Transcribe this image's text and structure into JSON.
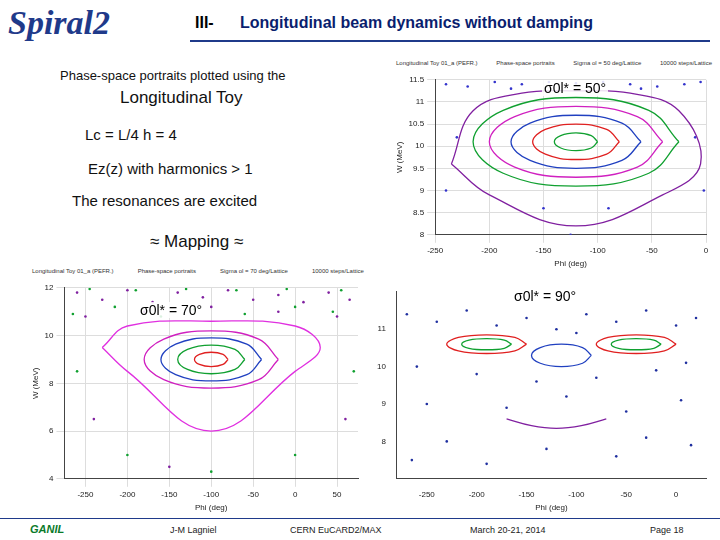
{
  "slide": {
    "logo": "Spiral2",
    "section": "III-",
    "title": "Longitudinal beam dynamics without damping",
    "lines": [
      "Phase-space portraits plotted using the",
      "Longitudinal Toy",
      "Lc = L/4     h = 4",
      "Ez(z) with harmonics > 1",
      "The resonances are excited",
      "≈  Mapping  ≈"
    ],
    "footer": {
      "logo": "GANIL",
      "author": "J-M Lagniel",
      "event": "CERN  EuCARD2/MAX",
      "date": "March 20-21, 2014",
      "page": "Page 18"
    }
  },
  "chart_data": [
    {
      "type": "scatter",
      "header": [
        "Longitudinal Toy 01_a (PEFR.)",
        "Phase-space portraits",
        "Sigma ol = 50 deg/Lattice",
        "10000 steps/Lattice"
      ],
      "annotation": "σ0l* = 50°",
      "x_label": "Phi (deg)",
      "y_label": "W (MeV)",
      "xlim": [
        -250,
        0
      ],
      "xticks": [
        -250,
        -200,
        -150,
        -100,
        -50,
        0
      ],
      "ylim": [
        8,
        11.5
      ],
      "yticks": [
        8,
        8.5,
        9,
        9.5,
        10,
        10.5,
        11,
        11.5
      ],
      "grid": true,
      "series": [
        {
          "color": "#10a030",
          "line_style": "solid",
          "x": [
            -100,
            -105.9,
            -120,
            -134.1,
            -140,
            -134.1,
            -120,
            -105.9,
            -100
          ],
          "values": [
            10.1,
            10.24,
            10.3,
            10.24,
            10.1,
            9.96,
            9.9,
            9.96,
            10.1
          ]
        },
        {
          "color": "#e02020",
          "line_style": "solid",
          "x": [
            -80,
            -91.7,
            -120,
            -148.3,
            -160,
            -148.3,
            -120,
            -91.7,
            -80
          ],
          "values": [
            10.1,
            10.38,
            10.5,
            10.38,
            10.1,
            9.82,
            9.7,
            9.82,
            10.1
          ]
        },
        {
          "color": "#2040c0",
          "line_style": "solid",
          "x": [
            -60,
            -77.6,
            -120,
            -162.4,
            -180,
            -162.4,
            -120,
            -77.6,
            -60
          ],
          "values": [
            10.1,
            10.52,
            10.7,
            10.52,
            10.1,
            9.68,
            9.5,
            9.68,
            10.1
          ]
        },
        {
          "color": "#d020c0",
          "line_style": "solid",
          "x": [
            -40,
            -63.4,
            -120,
            -176.6,
            -200,
            -176.6,
            -120,
            -63.4,
            -40
          ],
          "values": [
            10.1,
            10.67,
            10.9,
            10.67,
            10.1,
            9.53,
            9.3,
            9.53,
            10.1
          ]
        },
        {
          "color": "#10a030",
          "line_style": "solid",
          "x": [
            -25,
            -52.8,
            -120,
            -187.2,
            -215,
            -187.2,
            -120,
            -52.8,
            -25
          ],
          "values": [
            10.1,
            10.81,
            11.1,
            10.81,
            10.1,
            9.39,
            9.1,
            9.39,
            10.1
          ]
        },
        {
          "color": "#8020a0",
          "line_style": "solid",
          "x": [
            -235,
            -215,
            -170,
            -120,
            -70,
            -25,
            -5,
            -40,
            -120,
            -200,
            -235
          ],
          "values": [
            9.6,
            10.8,
            11.2,
            11.25,
            11.2,
            10.8,
            9.6,
            8.9,
            8.2,
            8.9,
            9.6
          ]
        },
        {
          "color": "#3333cc",
          "marker": "dot",
          "x": [
            -240,
            -220,
            -195,
            -170,
            -145,
            -120,
            -95,
            -70,
            -45,
            -20,
            -5,
            -230,
            -10,
            -240,
            -2,
            -180,
            -60,
            -150,
            -90,
            -125
          ],
          "values": [
            11.4,
            11.35,
            11.45,
            11.4,
            11.45,
            11.42,
            11.45,
            11.4,
            11.35,
            11.4,
            11.45,
            10.2,
            10.2,
            9.0,
            9.0,
            11.3,
            11.3,
            8.6,
            8.6,
            8.0
          ]
        }
      ]
    },
    {
      "type": "scatter",
      "header": [
        "Longitudinal Toy 01_a (PEFR.)",
        "Phase-space portraits",
        "Sigma ol = 70 deg/Lattice",
        "10000 steps/Lattice"
      ],
      "annotation": "σ0l* = 70°",
      "x_label": "Phi (deg)",
      "y_label": "W (MeV)",
      "xlim": [
        -275,
        75
      ],
      "xticks": [
        -250,
        -200,
        -150,
        -100,
        -50,
        0,
        50
      ],
      "ylim": [
        4,
        12
      ],
      "yticks": [
        4,
        6,
        8,
        10,
        12
      ],
      "grid": true,
      "series": [
        {
          "color": "#e02020",
          "line_style": "solid",
          "x": [
            -80,
            -85.9,
            -100,
            -114.1,
            -120,
            -114.1,
            -100,
            -85.9,
            -80
          ],
          "values": [
            9.0,
            9.21,
            9.3,
            9.21,
            9.0,
            8.79,
            8.7,
            8.79,
            9.0
          ]
        },
        {
          "color": "#10a030",
          "line_style": "solid",
          "x": [
            -60,
            -71.7,
            -100,
            -128.3,
            -140,
            -128.3,
            -100,
            -71.7,
            -60
          ],
          "values": [
            9.0,
            9.42,
            9.6,
            9.42,
            9.0,
            8.58,
            8.4,
            8.58,
            9.0
          ]
        },
        {
          "color": "#2040c0",
          "line_style": "solid",
          "x": [
            -40,
            -57.6,
            -100,
            -142.4,
            -160,
            -142.4,
            -100,
            -57.6,
            -40
          ],
          "values": [
            9.0,
            9.64,
            9.9,
            9.64,
            9.0,
            8.36,
            8.1,
            8.36,
            9.0
          ]
        },
        {
          "color": "#d020c0",
          "line_style": "solid",
          "x": [
            -20,
            -43.4,
            -100,
            -156.6,
            -180,
            -156.6,
            -100,
            -43.4,
            -20
          ],
          "values": [
            9.0,
            9.85,
            10.2,
            9.85,
            9.0,
            8.15,
            7.8,
            8.15,
            9.0
          ]
        },
        {
          "color": "#e030e0",
          "line_style": "solid",
          "x": [
            -230,
            -200,
            -100,
            0,
            30,
            0,
            -100,
            -200,
            -230
          ],
          "values": [
            9.5,
            10.4,
            10.6,
            10.4,
            9.5,
            8.5,
            6.0,
            8.5,
            9.5
          ]
        },
        {
          "color": "#8020a0",
          "marker": "dot",
          "x": [
            -260,
            -230,
            -200,
            -170,
            -140,
            -110,
            -80,
            -50,
            -20,
            10,
            40,
            65,
            -250,
            -180,
            -100,
            -20,
            50,
            -240,
            60,
            -150
          ],
          "values": [
            11.8,
            11.5,
            11.9,
            11.4,
            11.8,
            11.6,
            11.9,
            11.5,
            11.7,
            11.4,
            11.8,
            11.5,
            10.8,
            11.0,
            11.2,
            11.0,
            10.8,
            6.5,
            6.5,
            4.5
          ]
        },
        {
          "color": "#10a030",
          "marker": "dot",
          "x": [
            -265,
            -215,
            -160,
            -120,
            -60,
            0,
            45,
            -245,
            -190,
            -130,
            -70,
            -10,
            55,
            -200,
            0,
            -100,
            -260,
            70
          ],
          "values": [
            10.9,
            11.2,
            10.8,
            11.1,
            10.9,
            11.2,
            11.0,
            11.95,
            11.9,
            11.95,
            11.9,
            11.95,
            11.9,
            5.0,
            5.0,
            4.3,
            8.5,
            8.5
          ]
        }
      ]
    },
    {
      "type": "scatter",
      "annotation": "σ0l* = 90°",
      "x_label": "Phi (deg)",
      "xlim": [
        -280,
        30
      ],
      "xticks": [
        -250,
        -200,
        -150,
        -100,
        -50,
        0
      ],
      "ylim": [
        7,
        12
      ],
      "yticks": [
        8,
        9,
        10,
        11
      ],
      "grid": false,
      "series": [
        {
          "color": "#e02020",
          "line_style": "solid",
          "x": [
            -150,
            -161.7,
            -190,
            -218.3,
            -230,
            -218.3,
            -190,
            -161.7,
            -150
          ],
          "values": [
            10.6,
            10.78,
            10.85,
            10.78,
            10.6,
            10.42,
            10.35,
            10.42,
            10.6
          ]
        },
        {
          "color": "#10a030",
          "line_style": "solid",
          "x": [
            -165,
            -172.3,
            -190,
            -207.7,
            -215,
            -207.7,
            -190,
            -172.3,
            -165
          ],
          "values": [
            10.6,
            10.71,
            10.75,
            10.71,
            10.6,
            10.49,
            10.45,
            10.49,
            10.6
          ]
        },
        {
          "color": "#e02020",
          "line_style": "solid",
          "x": [
            0,
            -11.7,
            -40,
            -68.3,
            -80,
            -68.3,
            -40,
            -11.7,
            0
          ],
          "values": [
            10.6,
            10.78,
            10.85,
            10.78,
            10.6,
            10.42,
            10.35,
            10.42,
            10.6
          ]
        },
        {
          "color": "#10a030",
          "line_style": "solid",
          "x": [
            -15,
            -22.3,
            -40,
            -57.7,
            -65,
            -57.7,
            -40,
            -22.3,
            -15
          ],
          "values": [
            10.6,
            10.71,
            10.75,
            10.71,
            10.6,
            10.49,
            10.45,
            10.49,
            10.6
          ]
        },
        {
          "color": "#2040c0",
          "line_style": "solid",
          "x": [
            -85,
            -93.8,
            -115,
            -136.2,
            -145,
            -136.2,
            -115,
            -93.8,
            -85
          ],
          "values": [
            10.3,
            10.51,
            10.6,
            10.51,
            10.3,
            10.09,
            10.0,
            10.09,
            10.3
          ]
        },
        {
          "color": "#8020a0",
          "line_style": "solid",
          "x": [
            -170,
            -145,
            -120,
            -95,
            -70
          ],
          "values": [
            8.6,
            8.42,
            8.35,
            8.42,
            8.6
          ]
        },
        {
          "color": "#2030a0",
          "marker": "dot",
          "x": [
            -270,
            -240,
            -210,
            -180,
            -150,
            -120,
            -90,
            -60,
            -30,
            0,
            20,
            -260,
            -200,
            -140,
            -80,
            -20,
            10,
            -250,
            -170,
            -110,
            -50,
            5,
            -230,
            -130,
            -30,
            -265,
            -190,
            -60,
            15,
            -100
          ],
          "values": [
            11.4,
            11.2,
            11.5,
            11.1,
            11.3,
            11.0,
            11.4,
            11.2,
            11.5,
            11.1,
            11.3,
            10.0,
            9.8,
            9.6,
            9.7,
            9.9,
            10.1,
            9.0,
            8.9,
            9.2,
            8.8,
            9.1,
            8.0,
            7.8,
            8.1,
            7.5,
            7.4,
            7.6,
            7.9,
            10.9
          ]
        }
      ]
    }
  ]
}
